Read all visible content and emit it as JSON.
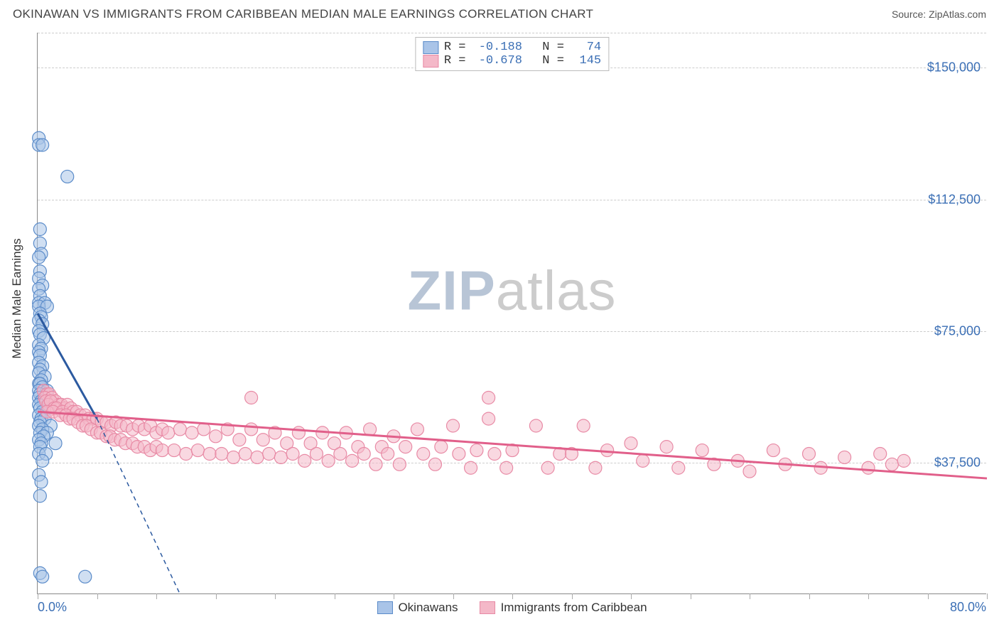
{
  "title": "OKINAWAN VS IMMIGRANTS FROM CARIBBEAN MEDIAN MALE EARNINGS CORRELATION CHART",
  "source": "Source: ZipAtlas.com",
  "watermark_a": "ZIP",
  "watermark_b": "atlas",
  "y_axis_label": "Median Male Earnings",
  "chart": {
    "type": "scatter",
    "xlim": [
      0,
      80
    ],
    "ylim": [
      0,
      160000
    ],
    "x_tick_step_pct": 5,
    "x_min_label": "0.0%",
    "x_max_label": "80.0%",
    "y_ticks": [
      {
        "v": 37500,
        "label": "$37,500"
      },
      {
        "v": 75000,
        "label": "$75,000"
      },
      {
        "v": 112500,
        "label": "$112,500"
      },
      {
        "v": 150000,
        "label": "$150,000"
      }
    ],
    "background_color": "#ffffff",
    "grid_color": "#cccccc",
    "marker_radius": 9,
    "marker_opacity": 0.55,
    "series": [
      {
        "name": "Okinawans",
        "color_fill": "#a9c4e8",
        "color_stroke": "#5a8bc9",
        "line_color": "#2c5aa0",
        "r": "-0.188",
        "n": "74",
        "trend": {
          "x1": 0,
          "y1": 80000,
          "x2": 5,
          "y2": 50000,
          "dash_ext_x": 12,
          "dash_ext_y": 0
        },
        "points": [
          [
            0.1,
            130000
          ],
          [
            0.1,
            128000
          ],
          [
            0.4,
            128000
          ],
          [
            2.5,
            119000
          ],
          [
            0.2,
            104000
          ],
          [
            0.2,
            100000
          ],
          [
            0.3,
            97000
          ],
          [
            0.1,
            96000
          ],
          [
            0.2,
            92000
          ],
          [
            0.1,
            90000
          ],
          [
            0.4,
            88000
          ],
          [
            0.1,
            87000
          ],
          [
            0.2,
            85000
          ],
          [
            0.1,
            83000
          ],
          [
            0.6,
            83000
          ],
          [
            0.1,
            82000
          ],
          [
            0.8,
            82000
          ],
          [
            0.2,
            80000
          ],
          [
            0.3,
            79000
          ],
          [
            0.1,
            78000
          ],
          [
            0.4,
            77000
          ],
          [
            0.1,
            75000
          ],
          [
            0.2,
            74000
          ],
          [
            0.5,
            73000
          ],
          [
            0.1,
            71000
          ],
          [
            0.3,
            70000
          ],
          [
            0.1,
            69000
          ],
          [
            0.2,
            68000
          ],
          [
            0.1,
            66000
          ],
          [
            0.4,
            65000
          ],
          [
            0.2,
            64000
          ],
          [
            0.1,
            63000
          ],
          [
            0.6,
            62000
          ],
          [
            0.3,
            61000
          ],
          [
            0.1,
            60000
          ],
          [
            0.2,
            60000
          ],
          [
            0.4,
            59000
          ],
          [
            0.1,
            58000
          ],
          [
            0.8,
            58000
          ],
          [
            0.2,
            57000
          ],
          [
            0.1,
            56000
          ],
          [
            0.3,
            55000
          ],
          [
            0.5,
            55000
          ],
          [
            0.1,
            54000
          ],
          [
            0.2,
            53000
          ],
          [
            0.9,
            53000
          ],
          [
            0.4,
            52000
          ],
          [
            0.1,
            51000
          ],
          [
            0.3,
            50000
          ],
          [
            0.6,
            50000
          ],
          [
            0.2,
            49000
          ],
          [
            0.1,
            48000
          ],
          [
            1.1,
            48000
          ],
          [
            0.4,
            47000
          ],
          [
            0.2,
            46000
          ],
          [
            0.8,
            46000
          ],
          [
            0.5,
            45000
          ],
          [
            0.1,
            44000
          ],
          [
            0.3,
            43000
          ],
          [
            1.5,
            43000
          ],
          [
            0.2,
            42000
          ],
          [
            0.1,
            40000
          ],
          [
            0.7,
            40000
          ],
          [
            0.4,
            38000
          ],
          [
            0.1,
            34000
          ],
          [
            0.3,
            32000
          ],
          [
            0.2,
            28000
          ],
          [
            0.2,
            6000
          ],
          [
            0.4,
            5000
          ],
          [
            4.0,
            5000
          ]
        ]
      },
      {
        "name": "Immigrants from Caribbean",
        "color_fill": "#f4b8c8",
        "color_stroke": "#e88aa5",
        "line_color": "#e15f8a",
        "r": "-0.678",
        "n": "145",
        "trend": {
          "x1": 0,
          "y1": 52000,
          "x2": 80,
          "y2": 33000
        },
        "points": [
          [
            0.5,
            58000
          ],
          [
            0.8,
            57000
          ],
          [
            1.0,
            57000
          ],
          [
            0.6,
            56000
          ],
          [
            1.2,
            56000
          ],
          [
            0.7,
            55000
          ],
          [
            1.5,
            55000
          ],
          [
            0.9,
            54000
          ],
          [
            1.8,
            54000
          ],
          [
            1.1,
            55000
          ],
          [
            2.0,
            54000
          ],
          [
            1.4,
            53000
          ],
          [
            2.3,
            53000
          ],
          [
            1.6,
            53000
          ],
          [
            2.5,
            54000
          ],
          [
            0.8,
            52000
          ],
          [
            1.3,
            52000
          ],
          [
            2.1,
            52000
          ],
          [
            2.8,
            53000
          ],
          [
            1.9,
            51000
          ],
          [
            3.0,
            52000
          ],
          [
            2.4,
            51000
          ],
          [
            3.3,
            52000
          ],
          [
            2.7,
            50000
          ],
          [
            3.6,
            51000
          ],
          [
            3.0,
            50000
          ],
          [
            4.0,
            51000
          ],
          [
            3.4,
            49000
          ],
          [
            4.3,
            50000
          ],
          [
            3.8,
            48000
          ],
          [
            4.7,
            50000
          ],
          [
            4.1,
            48000
          ],
          [
            5.0,
            50000
          ],
          [
            4.5,
            47000
          ],
          [
            5.4,
            49000
          ],
          [
            5.0,
            46000
          ],
          [
            5.8,
            49000
          ],
          [
            5.3,
            46000
          ],
          [
            6.2,
            48000
          ],
          [
            5.8,
            45000
          ],
          [
            6.6,
            49000
          ],
          [
            6.1,
            45000
          ],
          [
            7.0,
            48000
          ],
          [
            6.5,
            44000
          ],
          [
            7.5,
            48000
          ],
          [
            7.0,
            44000
          ],
          [
            8.0,
            47000
          ],
          [
            7.4,
            43000
          ],
          [
            8.5,
            48000
          ],
          [
            8.0,
            43000
          ],
          [
            9.0,
            47000
          ],
          [
            8.4,
            42000
          ],
          [
            9.5,
            48000
          ],
          [
            9.0,
            42000
          ],
          [
            10.0,
            46000
          ],
          [
            9.5,
            41000
          ],
          [
            10.5,
            47000
          ],
          [
            10.0,
            42000
          ],
          [
            11.0,
            46000
          ],
          [
            10.5,
            41000
          ],
          [
            12.0,
            47000
          ],
          [
            11.5,
            41000
          ],
          [
            13.0,
            46000
          ],
          [
            12.5,
            40000
          ],
          [
            14.0,
            47000
          ],
          [
            13.5,
            41000
          ],
          [
            15.0,
            45000
          ],
          [
            14.5,
            40000
          ],
          [
            16.0,
            47000
          ],
          [
            15.5,
            40000
          ],
          [
            17.0,
            44000
          ],
          [
            16.5,
            39000
          ],
          [
            18.0,
            47000
          ],
          [
            17.5,
            40000
          ],
          [
            19.0,
            44000
          ],
          [
            18.5,
            39000
          ],
          [
            20.0,
            46000
          ],
          [
            19.5,
            40000
          ],
          [
            18.0,
            56000
          ],
          [
            21.0,
            43000
          ],
          [
            20.5,
            39000
          ],
          [
            22.0,
            46000
          ],
          [
            21.5,
            40000
          ],
          [
            23.0,
            43000
          ],
          [
            22.5,
            38000
          ],
          [
            24.0,
            46000
          ],
          [
            23.5,
            40000
          ],
          [
            25.0,
            43000
          ],
          [
            24.5,
            38000
          ],
          [
            26.0,
            46000
          ],
          [
            25.5,
            40000
          ],
          [
            27.0,
            42000
          ],
          [
            26.5,
            38000
          ],
          [
            28.0,
            47000
          ],
          [
            27.5,
            40000
          ],
          [
            29.0,
            42000
          ],
          [
            28.5,
            37000
          ],
          [
            30.0,
            45000
          ],
          [
            29.5,
            40000
          ],
          [
            31.0,
            42000
          ],
          [
            30.5,
            37000
          ],
          [
            32.0,
            47000
          ],
          [
            32.5,
            40000
          ],
          [
            34.0,
            42000
          ],
          [
            33.5,
            37000
          ],
          [
            35.0,
            48000
          ],
          [
            35.5,
            40000
          ],
          [
            37.0,
            41000
          ],
          [
            36.5,
            36000
          ],
          [
            38.0,
            50000
          ],
          [
            38.5,
            40000
          ],
          [
            40.0,
            41000
          ],
          [
            39.5,
            36000
          ],
          [
            38.0,
            56000
          ],
          [
            42.0,
            48000
          ],
          [
            44.0,
            40000
          ],
          [
            43.0,
            36000
          ],
          [
            46.0,
            48000
          ],
          [
            45.0,
            40000
          ],
          [
            48.0,
            41000
          ],
          [
            47.0,
            36000
          ],
          [
            50.0,
            43000
          ],
          [
            51.0,
            38000
          ],
          [
            53.0,
            42000
          ],
          [
            54.0,
            36000
          ],
          [
            56.0,
            41000
          ],
          [
            57.0,
            37000
          ],
          [
            59.0,
            38000
          ],
          [
            60.0,
            35000
          ],
          [
            62.0,
            41000
          ],
          [
            63.0,
            37000
          ],
          [
            65.0,
            40000
          ],
          [
            66.0,
            36000
          ],
          [
            68.0,
            39000
          ],
          [
            70.0,
            36000
          ],
          [
            71.0,
            40000
          ],
          [
            72.0,
            37000
          ],
          [
            73.0,
            38000
          ]
        ]
      }
    ]
  }
}
